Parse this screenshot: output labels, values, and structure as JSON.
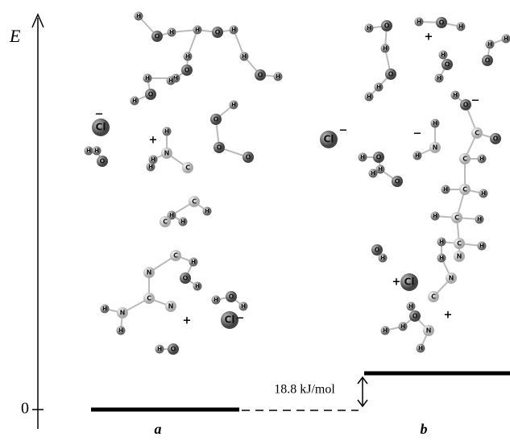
{
  "axis_label": "E",
  "zero_label": "0",
  "energy_gap": "18.8 kJ/mol",
  "structure_a": {
    "label": "a",
    "atoms": [
      "H",
      "O",
      "H",
      "H",
      "O",
      "H",
      "H",
      "O",
      "H",
      "H",
      "O",
      "H",
      "H",
      "O",
      "H",
      "H",
      "H",
      "O",
      "Cl",
      "H",
      "N",
      "H",
      "H",
      "H",
      "O",
      "H",
      "C",
      "O",
      "O",
      "C",
      "H",
      "H",
      "C",
      "H",
      "C",
      "H",
      "N",
      "C",
      "N",
      "N",
      "H",
      "H",
      "O",
      "H",
      "O",
      "H",
      "H",
      "O",
      "H",
      "Cl"
    ],
    "charges": [
      "−",
      "+",
      "+",
      "−"
    ]
  },
  "structure_b": {
    "label": "b",
    "atoms": [
      "H",
      "O",
      "H",
      "H",
      "O",
      "H",
      "H",
      "O",
      "H",
      "O",
      "H",
      "H",
      "H",
      "O",
      "H",
      "O",
      "H",
      "C",
      "O",
      "Cl",
      "H",
      "N",
      "H",
      "H",
      "O",
      "H",
      "O",
      "H",
      "C",
      "H",
      "C",
      "H",
      "H",
      "C",
      "H",
      "H",
      "C",
      "H",
      "H",
      "N",
      "H",
      "N",
      "C",
      "N",
      "H",
      "O",
      "H",
      "H",
      "H",
      "O",
      "H",
      "Cl"
    ],
    "charges": [
      "+",
      "−",
      "−",
      "+",
      "−",
      "+"
    ]
  }
}
